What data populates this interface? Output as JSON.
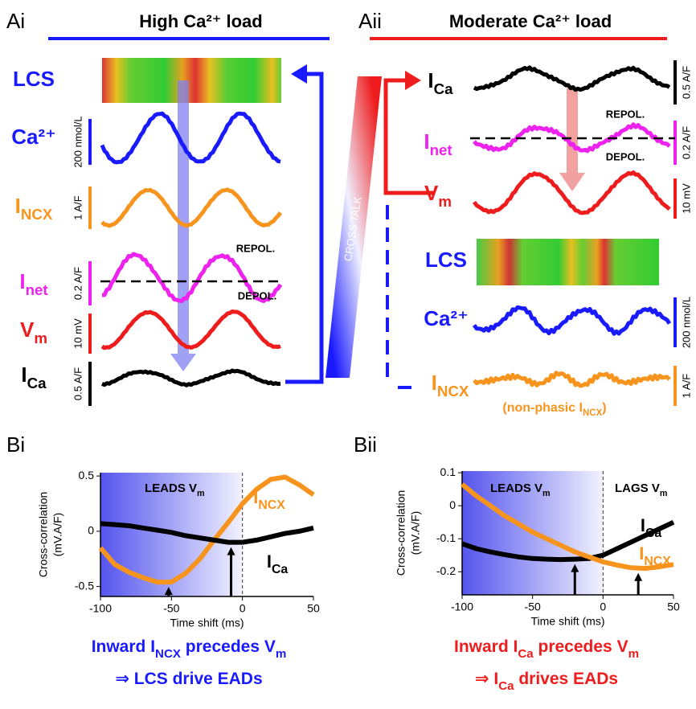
{
  "panels": [
    {
      "label": "Ai",
      "title": "High Ca²⁺ load",
      "rows": [
        {
          "name": [
            "LCS"
          ]
        },
        {
          "name": [
            "Ca²⁺"
          ],
          "scale": "200 nmol/L"
        },
        {
          "name": [
            "I",
            "NCX"
          ],
          "scale": "1 A/F"
        },
        {
          "name": [
            "I",
            "net"
          ],
          "scale": "0.2 A/F"
        },
        {
          "name": [
            "V",
            "m"
          ],
          "scale": "10 mV"
        },
        {
          "name": [
            "I",
            "Ca"
          ],
          "scale": "0.5 A/F"
        }
      ],
      "repol": "REPOL.",
      "depol": "DEPOL."
    },
    {
      "label": "Aii",
      "title": "Moderate Ca²⁺ load",
      "rows": [
        {
          "name": [
            "I",
            "Ca"
          ],
          "scale": "0.5 A/F"
        },
        {
          "name": [
            "I",
            "net"
          ],
          "scale": "0.2 A/F"
        },
        {
          "name": [
            "V",
            "m"
          ],
          "scale": "10 mV"
        },
        {
          "name": [
            "LCS"
          ]
        },
        {
          "name": [
            "Ca²⁺"
          ],
          "scale": "200 nmol/L"
        },
        {
          "name": [
            "I",
            "NCX"
          ],
          "scale": "1 A/F"
        }
      ],
      "repol": "REPOL.",
      "depol": "DEPOL.",
      "note": [
        "(non-phasic I",
        "NCX",
        ")"
      ]
    }
  ],
  "cross_talk": "CROSS TALK",
  "chart_data": [
    {
      "type": "line",
      "label": "Bi",
      "xlabel": "Time shift (ms)",
      "ylabel": [
        "Cross-correlation",
        "(mV.A/F)"
      ],
      "x": [
        -100,
        -90,
        -80,
        -70,
        -60,
        -50,
        -40,
        -30,
        -20,
        -10,
        0,
        10,
        20,
        30,
        40,
        50
      ],
      "xlim": [
        -100,
        50
      ],
      "xticks": [
        -100,
        -50,
        0,
        50
      ],
      "ylim": [
        -0.59,
        0.53
      ],
      "yticks": [
        -0.5,
        0,
        0.5
      ],
      "series": [
        {
          "name": [
            "I",
            "NCX"
          ],
          "color": "#f7941d",
          "values": [
            -0.15,
            -0.3,
            -0.37,
            -0.42,
            -0.46,
            -0.46,
            -0.38,
            -0.25,
            -0.08,
            0.08,
            0.25,
            0.38,
            0.47,
            0.49,
            0.42,
            0.33
          ]
        },
        {
          "name": [
            "I",
            "Ca"
          ],
          "color": "#000000",
          "values": [
            0.07,
            0.06,
            0.05,
            0.03,
            0.01,
            -0.01,
            -0.04,
            -0.06,
            -0.08,
            -0.1,
            -0.1,
            -0.08,
            -0.05,
            -0.02,
            0.0,
            0.03
          ]
        }
      ],
      "markers": [
        -52,
        -8
      ],
      "annotations": [
        [
          "LEADS V",
          "m"
        ]
      ],
      "captions": [
        [
          "Inward I",
          "NCX",
          " precedes V",
          "m"
        ],
        [
          "⇒ LCS drive EADs"
        ]
      ],
      "caption_color": "#1a1aff"
    },
    {
      "type": "line",
      "label": "Bii",
      "xlabel": "Time shift (ms)",
      "ylabel": [
        "Cross-correlation",
        "(mV.A/F)"
      ],
      "x": [
        -100,
        -90,
        -80,
        -70,
        -60,
        -50,
        -40,
        -30,
        -20,
        -10,
        0,
        10,
        20,
        30,
        40,
        50
      ],
      "xlim": [
        -100,
        50
      ],
      "xticks": [
        -100,
        -50,
        0,
        50
      ],
      "ylim": [
        -0.27,
        0.105
      ],
      "yticks": [
        -0.2,
        -0.1,
        0,
        0.1
      ],
      "series": [
        {
          "name": [
            "I",
            "Ca"
          ],
          "color": "#000000",
          "values": [
            -0.115,
            -0.13,
            -0.14,
            -0.148,
            -0.155,
            -0.16,
            -0.162,
            -0.163,
            -0.162,
            -0.16,
            -0.15,
            -0.13,
            -0.11,
            -0.09,
            -0.07,
            -0.05
          ]
        },
        {
          "name": [
            "I",
            "NCX"
          ],
          "color": "#f7941d",
          "values": [
            0.065,
            0.03,
            0.0,
            -0.03,
            -0.055,
            -0.08,
            -0.1,
            -0.12,
            -0.14,
            -0.155,
            -0.17,
            -0.18,
            -0.188,
            -0.19,
            -0.185,
            -0.178
          ]
        }
      ],
      "markers": [
        -20,
        25
      ],
      "annotations": [
        [
          "LEADS V",
          "m"
        ],
        [
          "LAGS V",
          "m"
        ]
      ],
      "captions": [
        [
          "Inward I",
          "Ca",
          " precedes V",
          "m"
        ],
        [
          "⇒ I",
          "Ca",
          " drives EADs"
        ]
      ],
      "caption_color": "#ee1c1c"
    }
  ]
}
